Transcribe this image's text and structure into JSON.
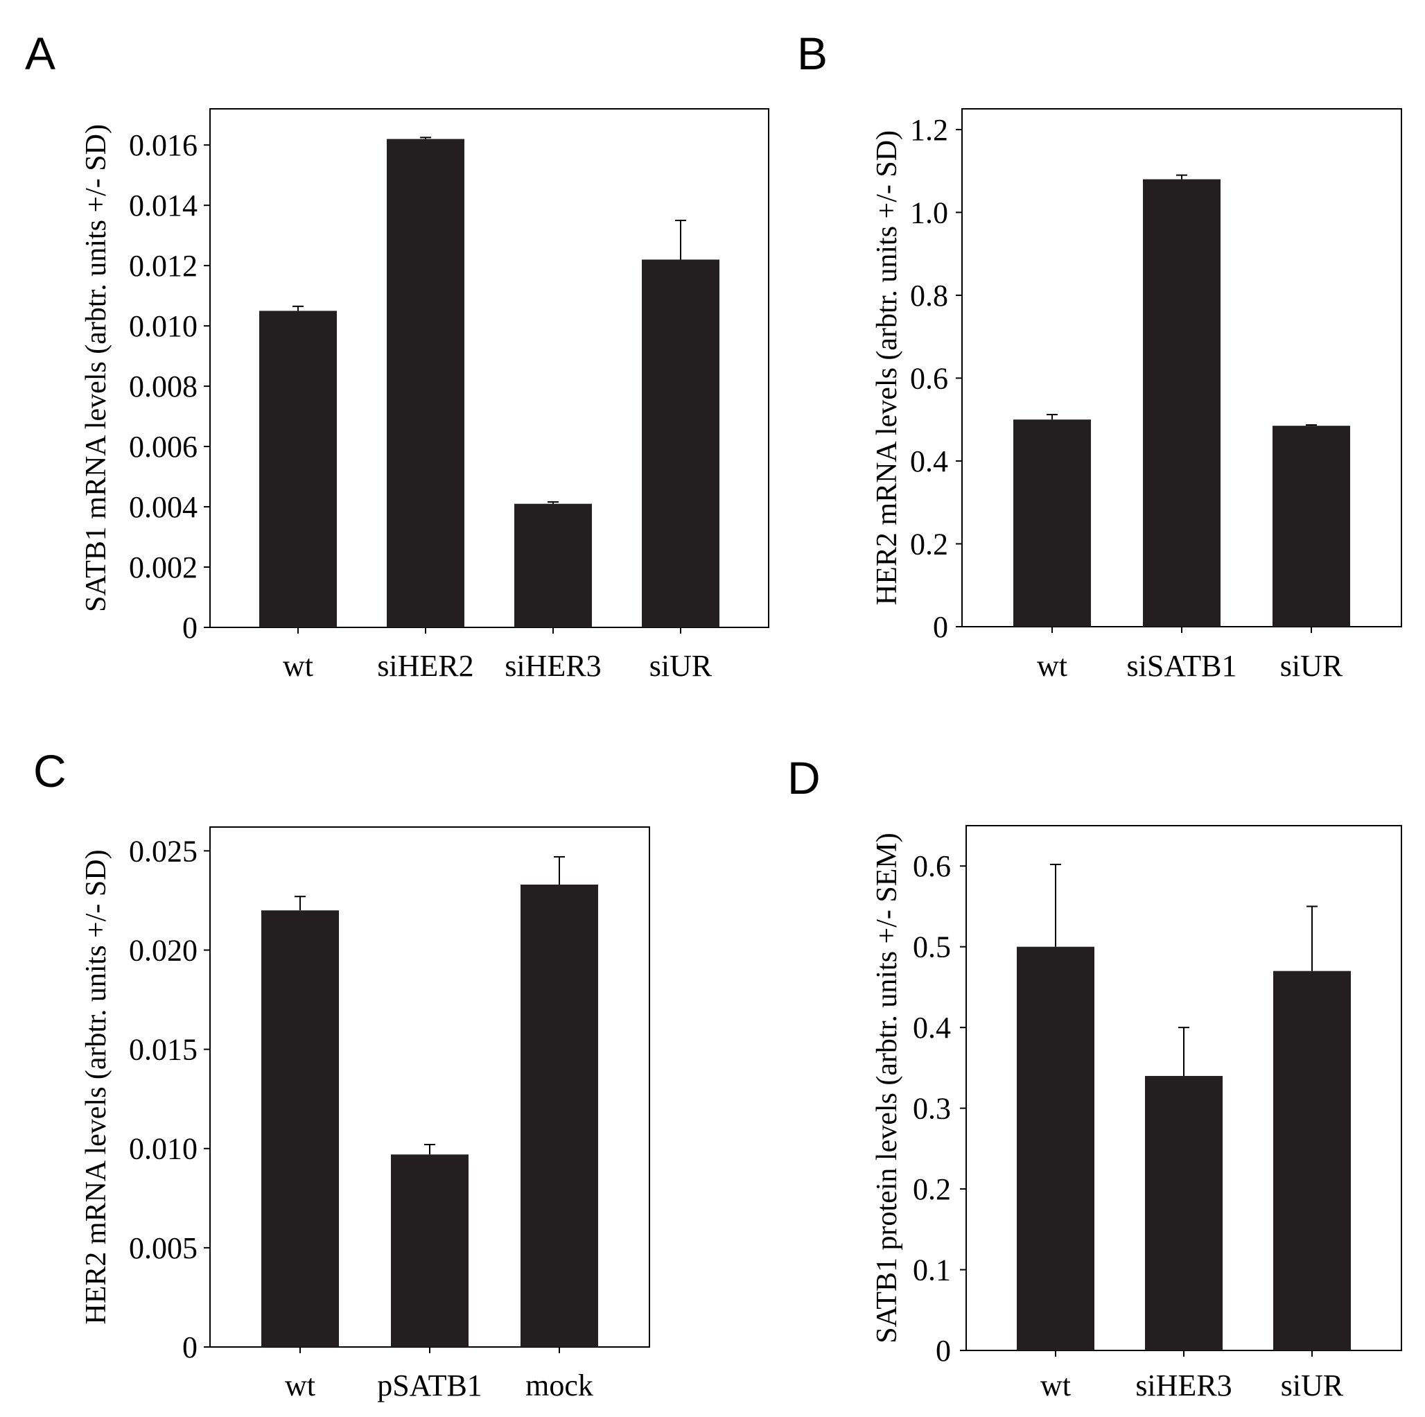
{
  "chart_data": [
    {
      "panel": "A",
      "type": "bar",
      "categories": [
        "wt",
        "siHER2",
        "siHER3",
        "siUR"
      ],
      "values": [
        0.0105,
        0.0162,
        0.0041,
        0.0122
      ],
      "errors": [
        0.00015,
        5e-05,
        6e-05,
        0.0013
      ],
      "ylabel": "SATB1 mRNA levels (arbtr. units +/- SD)",
      "yticks": [
        0,
        0.002,
        0.004,
        0.006,
        0.008,
        0.01,
        0.012,
        0.014,
        0.016
      ],
      "ytick_labels": [
        "0",
        "0.002",
        "0.004",
        "0.006",
        "0.008",
        "0.010",
        "0.012",
        "0.014",
        "0.016"
      ],
      "ylim": [
        0,
        0.0172
      ]
    },
    {
      "panel": "B",
      "type": "bar",
      "categories": [
        "wt",
        "siSATB1",
        "siUR"
      ],
      "values": [
        0.5,
        1.08,
        0.485
      ],
      "errors": [
        0.012,
        0.01,
        0.002
      ],
      "ylabel": "HER2 mRNA levels (arbtr. units +/- SD)",
      "yticks": [
        0,
        0.2,
        0.4,
        0.6,
        0.8,
        1.0,
        1.2
      ],
      "ytick_labels": [
        "0",
        "0.2",
        "0.4",
        "0.6",
        "0.8",
        "1.0",
        "1.2"
      ],
      "ylim": [
        0,
        1.25
      ]
    },
    {
      "panel": "C",
      "type": "bar",
      "categories": [
        "wt",
        "pSATB1",
        "mock"
      ],
      "values": [
        0.022,
        0.0097,
        0.0233
      ],
      "errors": [
        0.0007,
        0.0005,
        0.0014
      ],
      "ylabel": "HER2 mRNA levels (arbtr. units +/- SD)",
      "yticks": [
        0,
        0.005,
        0.01,
        0.015,
        0.02,
        0.025
      ],
      "ytick_labels": [
        "0",
        "0.005",
        "0.010",
        "0.015",
        "0.020",
        "0.025"
      ],
      "ylim": [
        0,
        0.0262
      ]
    },
    {
      "panel": "D",
      "type": "bar",
      "categories": [
        "wt",
        "siHER3",
        "siUR"
      ],
      "values": [
        0.5,
        0.34,
        0.47
      ],
      "errors": [
        0.102,
        0.06,
        0.08
      ],
      "ylabel": "SATB1 protein levels (arbtr. units +/- SEM)",
      "yticks": [
        0,
        0.1,
        0.2,
        0.3,
        0.4,
        0.5,
        0.6
      ],
      "ytick_labels": [
        "0",
        "0.1",
        "0.2",
        "0.3",
        "0.4",
        "0.5",
        "0.6"
      ],
      "ylim": [
        0,
        0.65
      ]
    }
  ]
}
